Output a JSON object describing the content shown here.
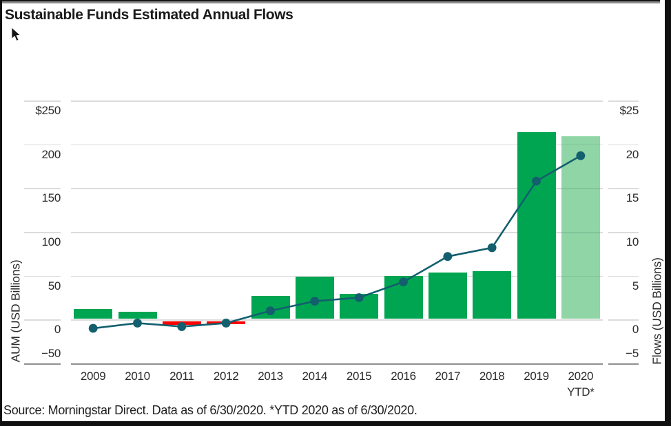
{
  "title": "Sustainable Funds Estimated Annual Flows",
  "source_note": "Source: Morningstar Direct. Data as of 6/30/2020. *YTD 2020 as of 6/30/2020.",
  "chart_data": {
    "type": "bar",
    "subtype": "dual-axis bar + line",
    "categories": [
      "2009",
      "2010",
      "2011",
      "2012",
      "2013",
      "2014",
      "2015",
      "2016",
      "2017",
      "2018",
      "2019",
      "2020"
    ],
    "category_sublabels": [
      "",
      "",
      "",
      "",
      "",
      "",
      "",
      "",
      "",
      "",
      "",
      "YTD*"
    ],
    "series": [
      {
        "name": "Estimated annual flows",
        "type": "bar",
        "axis": "right",
        "values": [
          1.2,
          0.9,
          -0.6,
          -0.5,
          2.7,
          4.9,
          2.9,
          5.0,
          5.4,
          5.5,
          21.4,
          20.9
        ]
      },
      {
        "name": "AUM",
        "type": "line",
        "axis": "left",
        "values": [
          -10,
          -4,
          -8,
          -4,
          10,
          21,
          25,
          43,
          72,
          82,
          158,
          187
        ]
      }
    ],
    "left_axis": {
      "label": "AUM (USD Billions)",
      "min": -50,
      "max": 250,
      "tick_step": 50,
      "ticks": [
        "$250",
        "200",
        "150",
        "100",
        "50",
        "0",
        "−50"
      ]
    },
    "right_axis": {
      "label": "Flows (USD Billions)",
      "min": -5,
      "max": 25,
      "tick_step": 5,
      "ticks": [
        "$25",
        "20",
        "15",
        "10",
        "5",
        "0",
        "−5"
      ]
    },
    "grid": true,
    "legend": "none",
    "colors": {
      "bar_positive": "#00A551",
      "bar_negative": "#FF0000",
      "bar_ytd": "#8FD5A6",
      "line": "#135F6E",
      "gridline": "#DCDCDC",
      "axis_line": "#8F8F8F",
      "text": "#2B2B2B"
    }
  }
}
